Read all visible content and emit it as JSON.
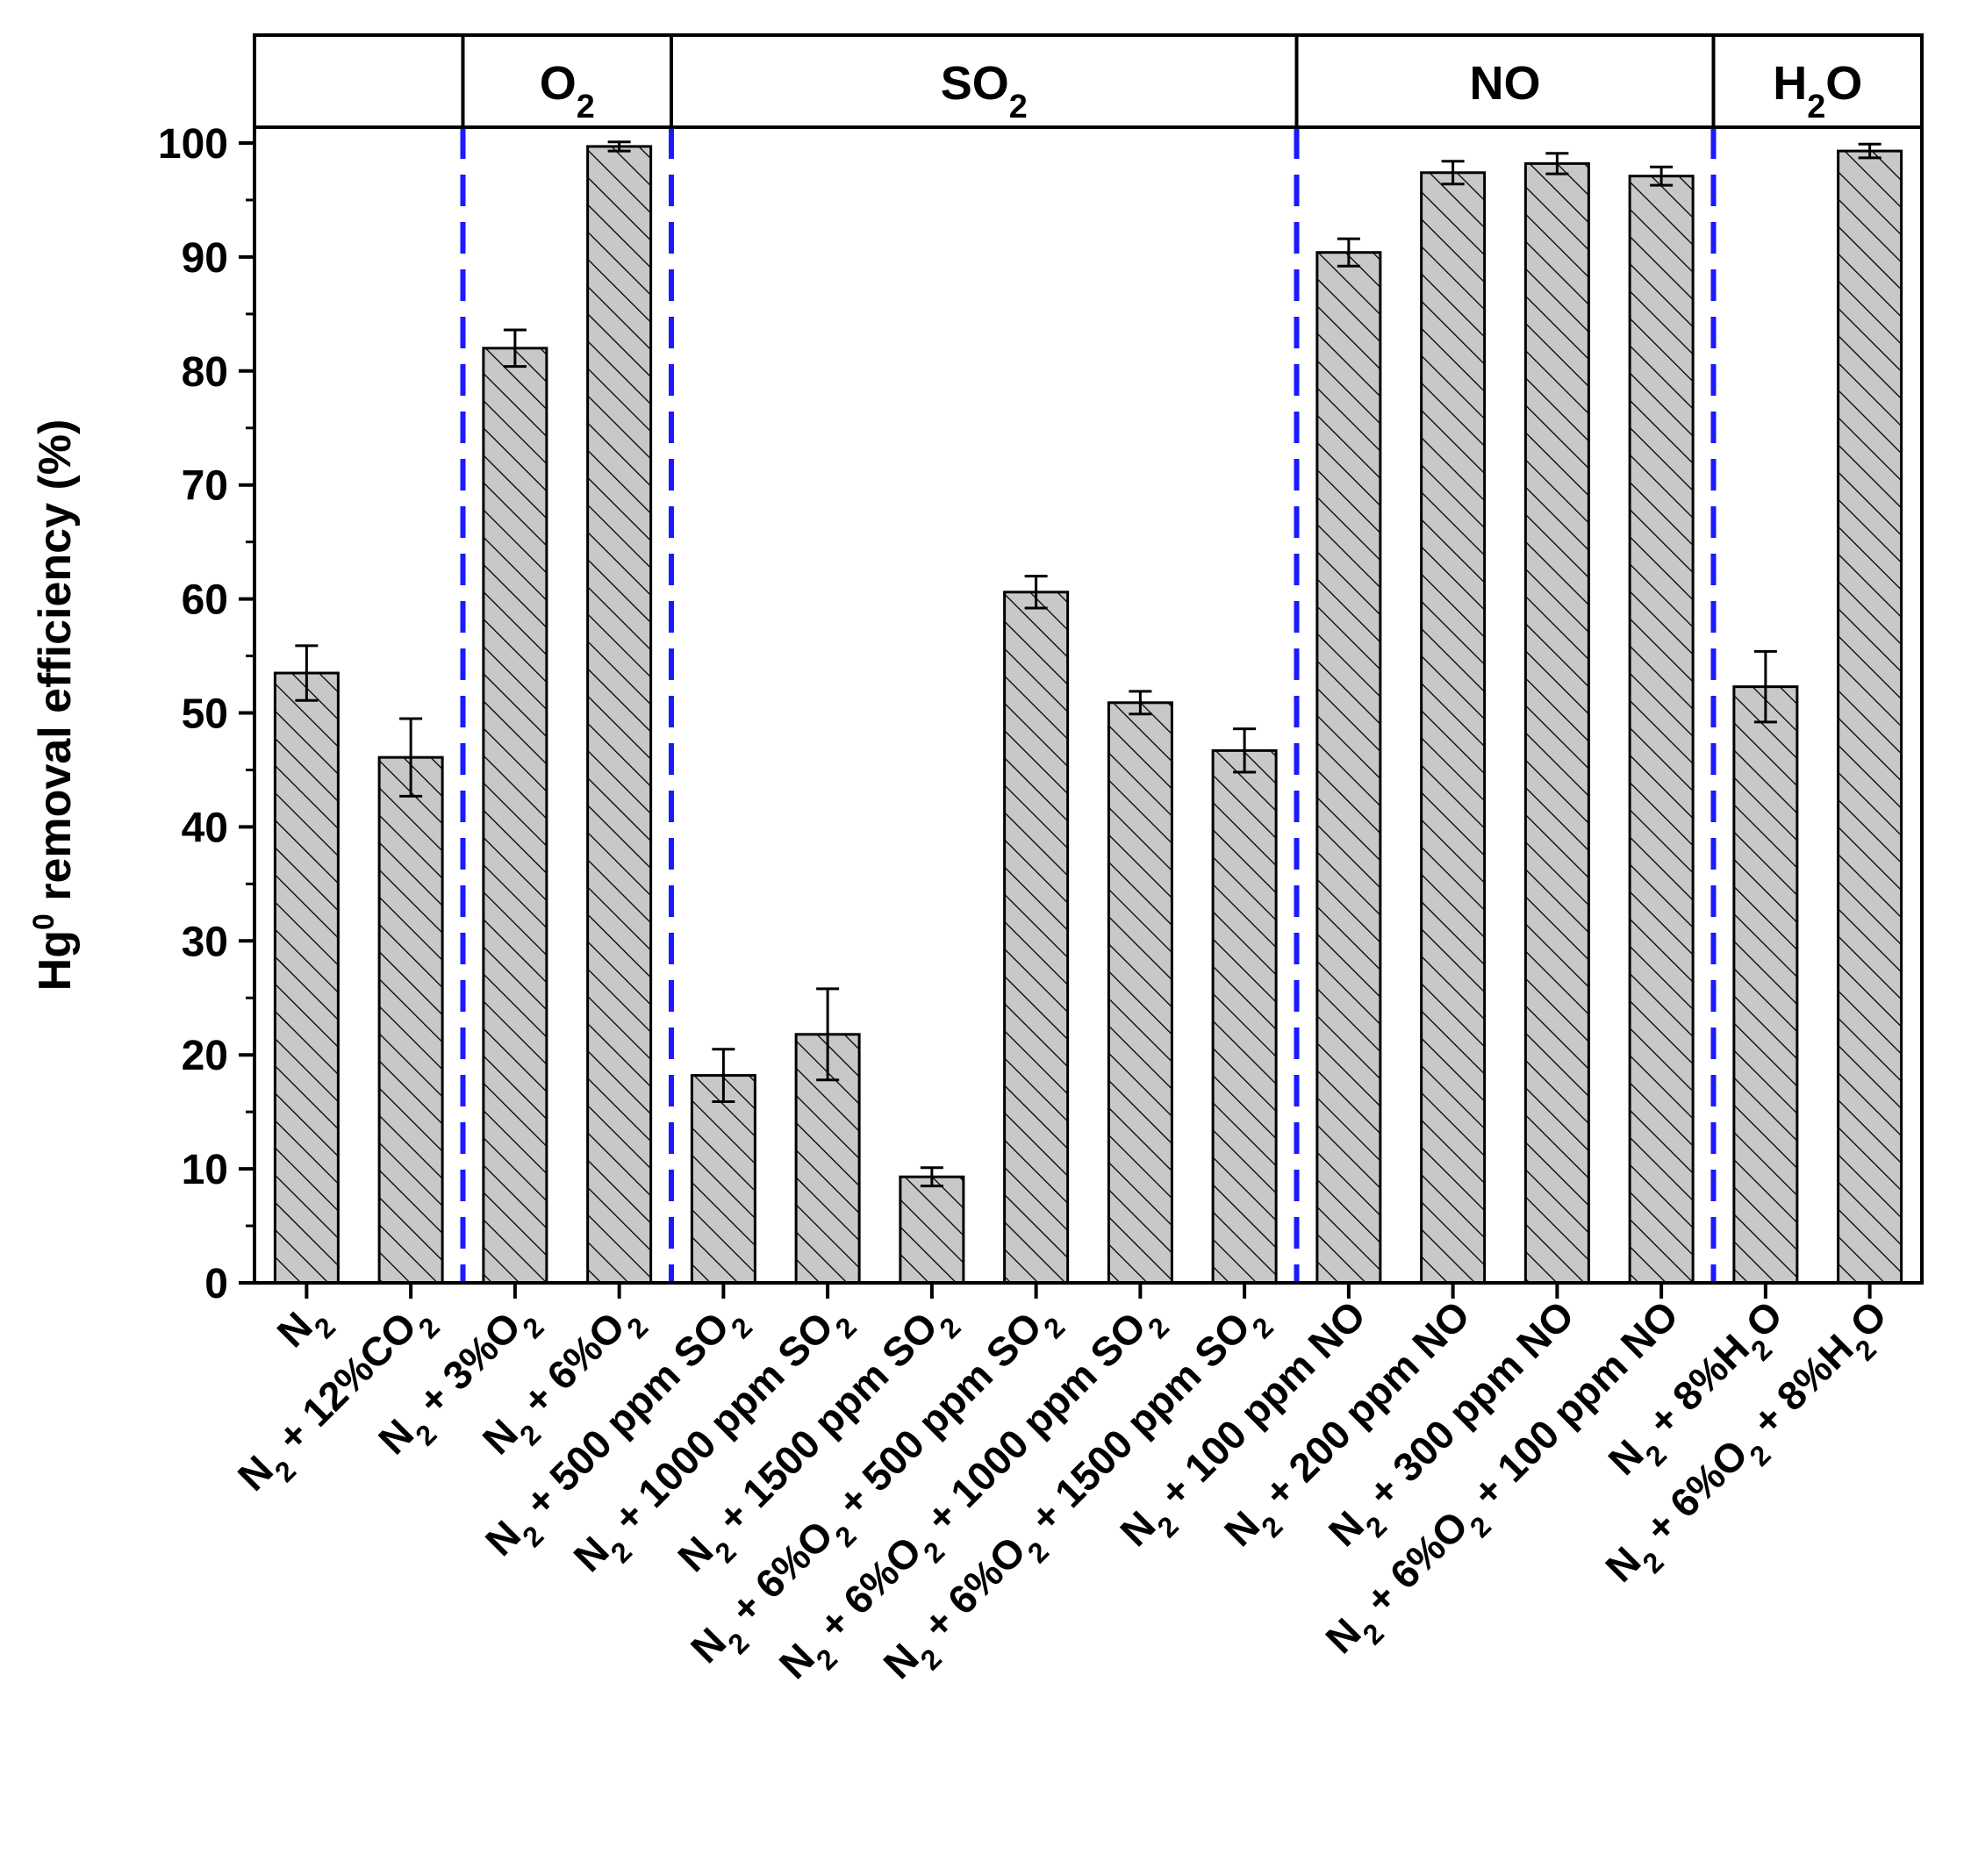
{
  "chart_data": {
    "type": "bar",
    "title": "",
    "xlabel": "",
    "ylabel": {
      "base": "Hg",
      "sup": "0",
      "rest": " removal efficiency (%)"
    },
    "ylim": [
      0,
      100
    ],
    "yticks": [
      "0",
      "10",
      "20",
      "30",
      "40",
      "50",
      "60",
      "70",
      "80",
      "90",
      "100"
    ],
    "grid": false,
    "bar_fill": "#c8c8c8",
    "bar_hatch": "diagonal",
    "divider_color": "#1a1aff",
    "categories": [
      [
        {
          "t": "N"
        },
        {
          "t": "2",
          "s": "sub"
        }
      ],
      [
        {
          "t": "N"
        },
        {
          "t": "2",
          "s": "sub"
        },
        {
          "t": " + 12%CO"
        },
        {
          "t": "2",
          "s": "sub"
        }
      ],
      [
        {
          "t": "N"
        },
        {
          "t": "2",
          "s": "sub"
        },
        {
          "t": " + 3%O"
        },
        {
          "t": "2",
          "s": "sub"
        }
      ],
      [
        {
          "t": "N"
        },
        {
          "t": "2",
          "s": "sub"
        },
        {
          "t": " + 6%O"
        },
        {
          "t": "2",
          "s": "sub"
        }
      ],
      [
        {
          "t": "N"
        },
        {
          "t": "2",
          "s": "sub"
        },
        {
          "t": " + 500 ppm SO"
        },
        {
          "t": "2",
          "s": "sub"
        }
      ],
      [
        {
          "t": "N"
        },
        {
          "t": "2",
          "s": "sub"
        },
        {
          "t": " + 1000 ppm SO"
        },
        {
          "t": "2",
          "s": "sub"
        }
      ],
      [
        {
          "t": "N"
        },
        {
          "t": "2",
          "s": "sub"
        },
        {
          "t": " + 1500 ppm SO"
        },
        {
          "t": "2",
          "s": "sub"
        }
      ],
      [
        {
          "t": "N"
        },
        {
          "t": "2",
          "s": "sub"
        },
        {
          "t": " + 6%O"
        },
        {
          "t": "2",
          "s": "sub"
        },
        {
          "t": " + 500 ppm SO"
        },
        {
          "t": "2",
          "s": "sub"
        }
      ],
      [
        {
          "t": "N"
        },
        {
          "t": "2",
          "s": "sub"
        },
        {
          "t": " + 6%O"
        },
        {
          "t": "2",
          "s": "sub"
        },
        {
          "t": " + 1000 ppm SO"
        },
        {
          "t": "2",
          "s": "sub"
        }
      ],
      [
        {
          "t": "N"
        },
        {
          "t": "2",
          "s": "sub"
        },
        {
          "t": " + 6%O"
        },
        {
          "t": "2",
          "s": "sub"
        },
        {
          "t": " + 1500 ppm SO"
        },
        {
          "t": "2",
          "s": "sub"
        }
      ],
      [
        {
          "t": "N"
        },
        {
          "t": "2",
          "s": "sub"
        },
        {
          "t": " + 100 ppm NO"
        }
      ],
      [
        {
          "t": "N"
        },
        {
          "t": "2",
          "s": "sub"
        },
        {
          "t": " + 200 ppm NO"
        }
      ],
      [
        {
          "t": "N"
        },
        {
          "t": "2",
          "s": "sub"
        },
        {
          "t": " + 300 ppm NO"
        }
      ],
      [
        {
          "t": "N"
        },
        {
          "t": "2",
          "s": "sub"
        },
        {
          "t": " + 6%O"
        },
        {
          "t": "2",
          "s": "sub"
        },
        {
          "t": " + 100 ppm NO"
        }
      ],
      [
        {
          "t": "N"
        },
        {
          "t": "2",
          "s": "sub"
        },
        {
          "t": " + 8%H"
        },
        {
          "t": "2",
          "s": "sub"
        },
        {
          "t": "O"
        }
      ],
      [
        {
          "t": "N"
        },
        {
          "t": "2",
          "s": "sub"
        },
        {
          "t": " + 6%O"
        },
        {
          "t": "2",
          "s": "sub"
        },
        {
          "t": " + 8%H"
        },
        {
          "t": "2",
          "s": "sub"
        },
        {
          "t": "O"
        }
      ]
    ],
    "values": [
      53.5,
      46.1,
      82.0,
      99.7,
      18.2,
      21.8,
      9.3,
      60.6,
      50.9,
      46.7,
      90.4,
      97.4,
      98.2,
      97.1,
      52.3,
      99.3
    ],
    "errors": [
      2.4,
      3.4,
      1.6,
      0.4,
      2.3,
      4.0,
      0.8,
      1.4,
      1.0,
      1.9,
      1.2,
      1.0,
      0.9,
      0.8,
      3.1,
      0.6
    ],
    "groups": [
      {
        "label": [],
        "start": 0,
        "end": 1
      },
      {
        "label": [
          {
            "t": "O"
          },
          {
            "t": "2",
            "s": "sub"
          }
        ],
        "start": 2,
        "end": 3
      },
      {
        "label": [
          {
            "t": "SO"
          },
          {
            "t": "2",
            "s": "sub"
          }
        ],
        "start": 4,
        "end": 9
      },
      {
        "label": [
          {
            "t": "NO"
          }
        ],
        "start": 10,
        "end": 13
      },
      {
        "label": [
          {
            "t": "H"
          },
          {
            "t": "2",
            "s": "sub"
          },
          {
            "t": "O"
          }
        ],
        "start": 14,
        "end": 15
      }
    ]
  }
}
